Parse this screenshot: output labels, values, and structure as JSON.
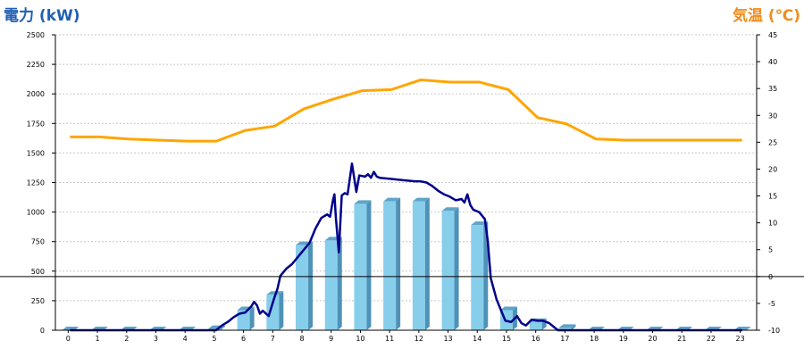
{
  "chart_data": {
    "type": "bar+line",
    "title_left": "電力 (kW)",
    "title_right": "気温 (℃)",
    "categories": [
      "0",
      "1",
      "2",
      "3",
      "4",
      "5",
      "6",
      "7",
      "8",
      "9",
      "10",
      "11",
      "12",
      "13",
      "14",
      "15",
      "16",
      "17",
      "18",
      "19",
      "20",
      "21",
      "22",
      "23"
    ],
    "y_left": {
      "min": 0,
      "max": 2500,
      "step": 250,
      "ticks": [
        "0",
        "250",
        "500",
        "750",
        "1000",
        "1250",
        "1500",
        "1750",
        "2000",
        "2250",
        "2500"
      ]
    },
    "y_right": {
      "min": -10,
      "max": 45,
      "step": 5,
      "ticks": [
        "-10",
        "-5",
        "0",
        "5",
        "10",
        "15",
        "20",
        "25",
        "30",
        "35",
        "40",
        "45"
      ]
    },
    "grid": true,
    "series": [
      {
        "kind": "bar",
        "axis": "left",
        "values": [
          0,
          0,
          0,
          0,
          0,
          10,
          170,
          300,
          720,
          760,
          1070,
          1090,
          1090,
          1010,
          890,
          170,
          70,
          20,
          0,
          0,
          0,
          0,
          0,
          0
        ],
        "color": "#87ceeb",
        "top_color": "#5fa3c8",
        "side_color": "#4f92b8"
      },
      {
        "kind": "line",
        "axis": "left",
        "color": "#00008b",
        "points": [
          [
            0,
            0
          ],
          [
            5,
            0
          ],
          [
            5.2,
            40
          ],
          [
            5.4,
            70
          ],
          [
            5.6,
            110
          ],
          [
            5.8,
            140
          ],
          [
            6.0,
            150
          ],
          [
            6.2,
            200
          ],
          [
            6.3,
            240
          ],
          [
            6.4,
            210
          ],
          [
            6.5,
            140
          ],
          [
            6.6,
            165
          ],
          [
            6.8,
            120
          ],
          [
            6.9,
            200
          ],
          [
            7.0,
            280
          ],
          [
            7.1,
            350
          ],
          [
            7.2,
            460
          ],
          [
            7.4,
            520
          ],
          [
            7.6,
            560
          ],
          [
            7.8,
            620
          ],
          [
            8.0,
            680
          ],
          [
            8.2,
            740
          ],
          [
            8.4,
            860
          ],
          [
            8.6,
            950
          ],
          [
            8.8,
            980
          ],
          [
            8.9,
            960
          ],
          [
            9.0,
            1100
          ],
          [
            9.05,
            1150
          ],
          [
            9.1,
            950
          ],
          [
            9.2,
            660
          ],
          [
            9.3,
            1140
          ],
          [
            9.4,
            1160
          ],
          [
            9.5,
            1150
          ],
          [
            9.65,
            1410
          ],
          [
            9.8,
            1170
          ],
          [
            9.9,
            1310
          ],
          [
            10.1,
            1300
          ],
          [
            10.2,
            1320
          ],
          [
            10.3,
            1290
          ],
          [
            10.4,
            1340
          ],
          [
            10.5,
            1300
          ],
          [
            10.6,
            1290
          ],
          [
            11.0,
            1280
          ],
          [
            11.4,
            1270
          ],
          [
            11.8,
            1260
          ],
          [
            12.0,
            1260
          ],
          [
            12.2,
            1250
          ],
          [
            12.4,
            1220
          ],
          [
            12.6,
            1180
          ],
          [
            12.8,
            1150
          ],
          [
            13.0,
            1130
          ],
          [
            13.2,
            1100
          ],
          [
            13.4,
            1110
          ],
          [
            13.5,
            1080
          ],
          [
            13.6,
            1150
          ],
          [
            13.7,
            1060
          ],
          [
            13.8,
            1020
          ],
          [
            14.0,
            1000
          ],
          [
            14.2,
            940
          ],
          [
            14.3,
            750
          ],
          [
            14.4,
            440
          ],
          [
            14.6,
            260
          ],
          [
            14.8,
            140
          ],
          [
            14.9,
            80
          ],
          [
            15.1,
            70
          ],
          [
            15.3,
            120
          ],
          [
            15.45,
            60
          ],
          [
            15.6,
            40
          ],
          [
            15.8,
            90
          ],
          [
            16.0,
            80
          ],
          [
            16.2,
            80
          ],
          [
            16.4,
            60
          ],
          [
            16.6,
            20
          ],
          [
            16.7,
            0
          ],
          [
            17,
            0
          ],
          [
            23,
            0
          ]
        ]
      },
      {
        "kind": "line",
        "axis": "right",
        "color": "#ffa500",
        "values": [
          26,
          26,
          25.6,
          25.4,
          25.2,
          25.2,
          27.2,
          28,
          31.2,
          33,
          34.6,
          34.8,
          36.6,
          36.2,
          36.2,
          34.8,
          29.6,
          28.4,
          25.6,
          25.4,
          25.4,
          25.4,
          25.4,
          25.4
        ]
      }
    ]
  }
}
